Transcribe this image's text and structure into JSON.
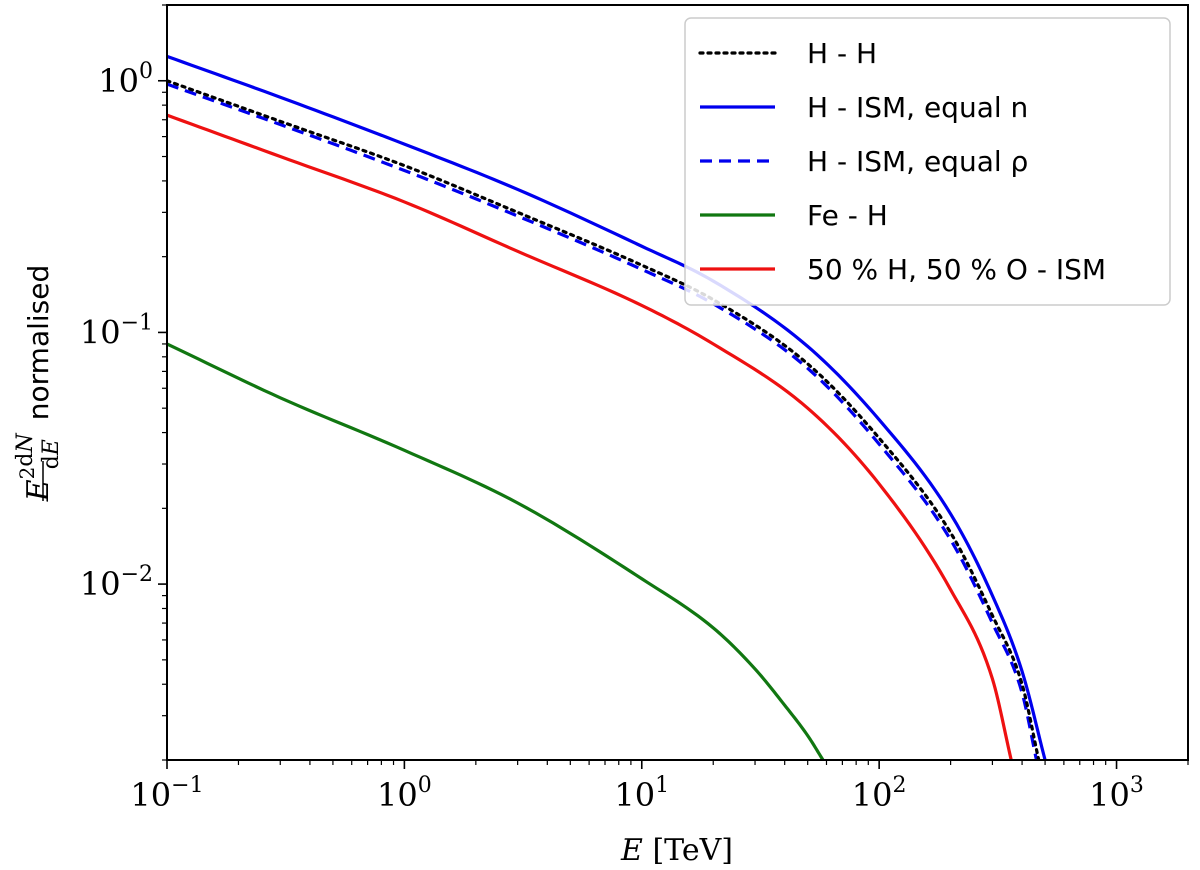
{
  "chart_data": {
    "type": "line",
    "xscale": "log",
    "yscale": "log",
    "xlim": [
      0.1,
      2000
    ],
    "ylim": [
      0.002,
      2.0
    ],
    "xlabel": "E [TeV]",
    "ylabel": "E² dN/dE normalised",
    "grid": false,
    "legend_position": "top-right",
    "x_ticks": [
      {
        "value": 0.1,
        "base": "10",
        "exp": "−1"
      },
      {
        "value": 1,
        "base": "10",
        "exp": "0"
      },
      {
        "value": 10,
        "base": "10",
        "exp": "1"
      },
      {
        "value": 100,
        "base": "10",
        "exp": "2"
      },
      {
        "value": 1000,
        "base": "10",
        "exp": "3"
      }
    ],
    "y_ticks": [
      {
        "value": 0.01,
        "base": "10",
        "exp": "−2"
      },
      {
        "value": 0.1,
        "base": "10",
        "exp": "−1"
      },
      {
        "value": 1,
        "base": "10",
        "exp": "0"
      }
    ],
    "series": [
      {
        "name": "H - H",
        "color": "#000000",
        "style": "dotted",
        "points": [
          [
            0.1,
            1.0
          ],
          [
            0.3,
            0.69
          ],
          [
            1,
            0.46
          ],
          [
            3,
            0.3
          ],
          [
            10,
            0.185
          ],
          [
            20,
            0.135
          ],
          [
            50,
            0.075
          ],
          [
            100,
            0.038
          ],
          [
            200,
            0.016
          ],
          [
            300,
            0.0075
          ],
          [
            400,
            0.004
          ],
          [
            470,
            0.002
          ]
        ]
      },
      {
        "name": "H - ISM, equal n",
        "color": "#0000ee",
        "style": "solid",
        "points": [
          [
            0.1,
            1.25
          ],
          [
            0.3,
            0.86
          ],
          [
            1,
            0.56
          ],
          [
            3,
            0.37
          ],
          [
            10,
            0.22
          ],
          [
            20,
            0.16
          ],
          [
            50,
            0.088
          ],
          [
            100,
            0.045
          ],
          [
            200,
            0.019
          ],
          [
            300,
            0.009
          ],
          [
            400,
            0.0045
          ],
          [
            500,
            0.002
          ]
        ]
      },
      {
        "name": "H - ISM, equal ρ",
        "color": "#0000ee",
        "style": "dashed",
        "points": [
          [
            0.1,
            0.97
          ],
          [
            0.3,
            0.67
          ],
          [
            1,
            0.44
          ],
          [
            3,
            0.29
          ],
          [
            10,
            0.178
          ],
          [
            20,
            0.13
          ],
          [
            50,
            0.072
          ],
          [
            100,
            0.036
          ],
          [
            200,
            0.015
          ],
          [
            300,
            0.007
          ],
          [
            400,
            0.0037
          ],
          [
            460,
            0.002
          ]
        ]
      },
      {
        "name": "Fe - H",
        "color": "#117711",
        "style": "solid",
        "points": [
          [
            0.1,
            0.09
          ],
          [
            0.3,
            0.055
          ],
          [
            1,
            0.034
          ],
          [
            3,
            0.021
          ],
          [
            10,
            0.0105
          ],
          [
            20,
            0.0067
          ],
          [
            30,
            0.0046
          ],
          [
            40,
            0.0033
          ],
          [
            50,
            0.0025
          ],
          [
            58,
            0.002
          ]
        ]
      },
      {
        "name": "50 % H, 50 % O - ISM",
        "color": "#ee1111",
        "style": "solid",
        "points": [
          [
            0.1,
            0.73
          ],
          [
            0.3,
            0.5
          ],
          [
            1,
            0.33
          ],
          [
            3,
            0.21
          ],
          [
            10,
            0.128
          ],
          [
            20,
            0.09
          ],
          [
            50,
            0.05
          ],
          [
            100,
            0.025
          ],
          [
            200,
            0.0095
          ],
          [
            300,
            0.0042
          ],
          [
            360,
            0.002
          ]
        ]
      }
    ]
  }
}
